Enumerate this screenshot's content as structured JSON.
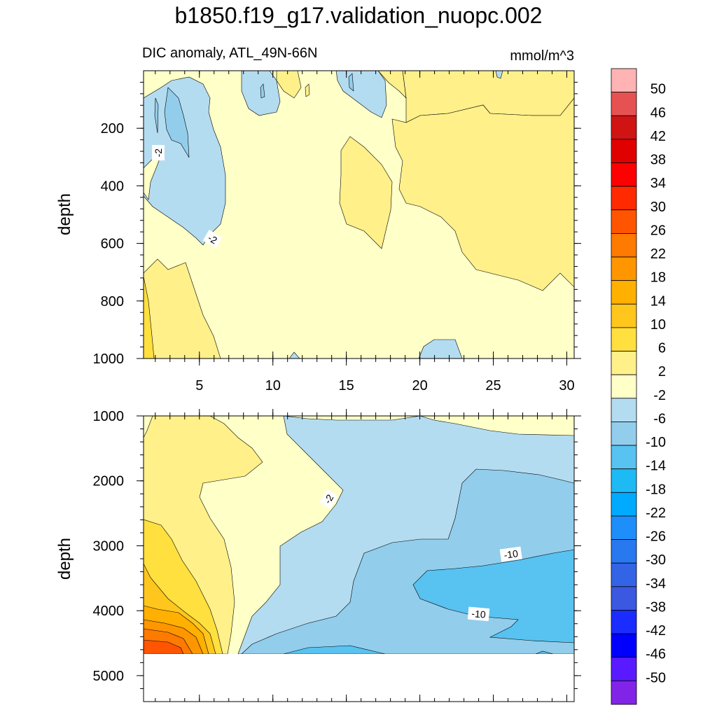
{
  "chart_data": [
    {
      "type": "contour",
      "title": "b1850.f19_g17.validation_nuopc.002",
      "subtitle_left": "DIC anomaly, ATL_49N-66N",
      "units": "mmol/m^3",
      "ylabel": "depth",
      "xlim": [
        1.2,
        30.5
      ],
      "ylim": [
        1000,
        0
      ],
      "x_ticks": [
        5,
        10,
        15,
        20,
        25,
        30
      ],
      "x_tick_labels": [
        "5",
        "10",
        "15",
        "20",
        "25",
        "30"
      ],
      "y_ticks": [
        200,
        400,
        600,
        800,
        1000
      ],
      "y_tick_labels": [
        "200",
        "400",
        "600",
        "800",
        "1000"
      ],
      "contour_labels": [
        {
          "text": "-2",
          "x": 2.2,
          "y": 285
        },
        {
          "text": "-2",
          "x": 5.9,
          "y": 585
        }
      ]
    },
    {
      "type": "contour",
      "ylabel": "depth",
      "xlim": [
        1.2,
        30.5
      ],
      "ylim": [
        5400,
        1000
      ],
      "y_ticks": [
        1000,
        2000,
        3000,
        4000,
        5000
      ],
      "y_tick_labels": [
        "1000",
        "2000",
        "3000",
        "4000",
        "5000"
      ],
      "data_bottom_depth": 4630,
      "contour_labels": [
        {
          "text": "-2",
          "x": 13.8,
          "y": 2280
        },
        {
          "text": "-10",
          "x": 26.2,
          "y": 3130
        },
        {
          "text": "-10",
          "x": 24.0,
          "y": 4050
        }
      ]
    }
  ],
  "colorbar": {
    "levels": [
      "50",
      "46",
      "42",
      "38",
      "34",
      "30",
      "26",
      "22",
      "18",
      "14",
      "10",
      "6",
      "2",
      "-2",
      "-6",
      "-10",
      "-14",
      "-18",
      "-22",
      "-26",
      "-30",
      "-34",
      "-38",
      "-42",
      "-46",
      "-50"
    ],
    "colors": [
      "#ffb3b3",
      "#e65252",
      "#d01414",
      "#e00000",
      "#ff0000",
      "#ff2a00",
      "#ff5500",
      "#ff7a00",
      "#ff9600",
      "#ffb000",
      "#ffc61e",
      "#ffe03e",
      "#fff08a",
      "#ffffc8",
      "#b4dcf0",
      "#92cdec",
      "#58c2f0",
      "#1ebaf6",
      "#00aaff",
      "#1e8ffa",
      "#2878f0",
      "#3464e6",
      "#3a58e0",
      "#1a2cff",
      "#0000ff",
      "#5a1aff",
      "#8224e8"
    ]
  }
}
